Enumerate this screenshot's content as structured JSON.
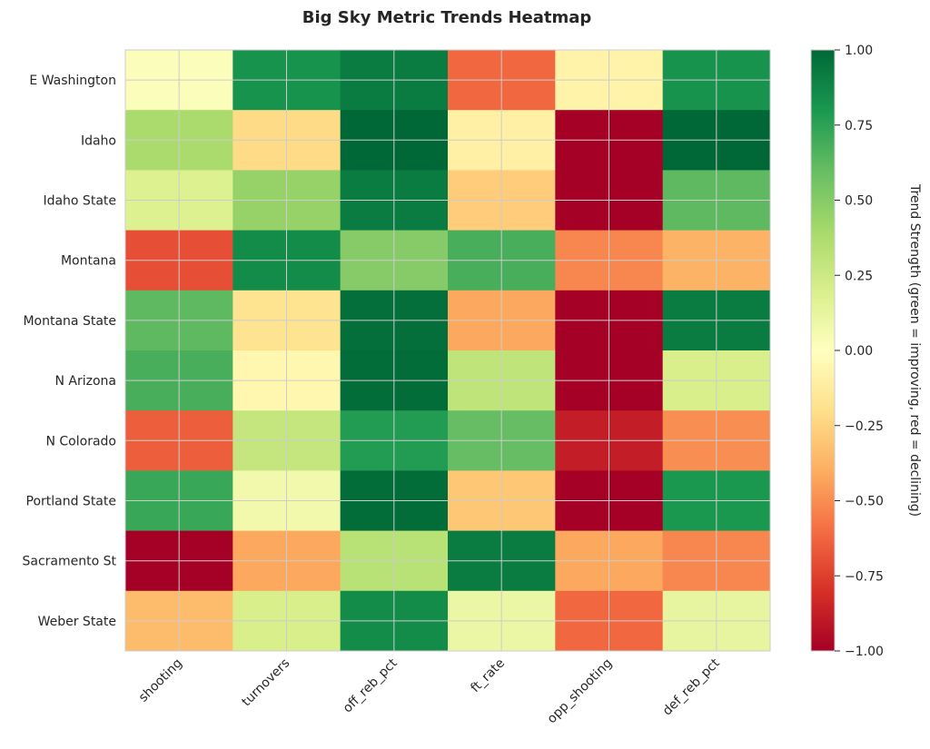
{
  "chart_data": {
    "type": "heatmap",
    "title": "Big Sky Metric Trends Heatmap",
    "rows": [
      "E Washington",
      "Idaho",
      "Idaho State",
      "Montana",
      "Montana State",
      "N Arizona",
      "N Colorado",
      "Portland State",
      "Sacramento St",
      "Weber State"
    ],
    "columns": [
      "shooting",
      "turnovers",
      "off_reb_pct",
      "ft_rate",
      "opp_shooting",
      "def_reb_pct"
    ],
    "values": [
      [
        0.02,
        0.82,
        0.92,
        -0.62,
        -0.08,
        0.82
      ],
      [
        0.38,
        -0.22,
        1.0,
        -0.1,
        -1.0,
        1.0
      ],
      [
        0.18,
        0.45,
        0.92,
        -0.28,
        -1.0,
        0.62
      ],
      [
        -0.7,
        0.85,
        0.5,
        0.68,
        -0.52,
        -0.38
      ],
      [
        0.62,
        -0.18,
        0.97,
        -0.42,
        -1.0,
        0.92
      ],
      [
        0.68,
        -0.06,
        0.98,
        0.3,
        -1.0,
        0.2
      ],
      [
        -0.65,
        0.28,
        0.78,
        0.6,
        -0.88,
        -0.5
      ],
      [
        0.72,
        0.07,
        0.98,
        -0.3,
        -1.0,
        0.8
      ],
      [
        -1.0,
        -0.42,
        0.33,
        0.92,
        -0.42,
        -0.52
      ],
      [
        -0.35,
        0.2,
        0.85,
        0.1,
        -0.62,
        0.12
      ]
    ],
    "colorbar": {
      "label": "Trend Strength (green = improving, red = declining)",
      "min": -1.0,
      "max": 1.0,
      "ticks": [
        "1.00",
        "0.75",
        "0.50",
        "0.25",
        "0.00",
        "−0.25",
        "−0.50",
        "−0.75",
        "−1.00"
      ],
      "colormap": "RdYlGn"
    },
    "grid": true
  }
}
